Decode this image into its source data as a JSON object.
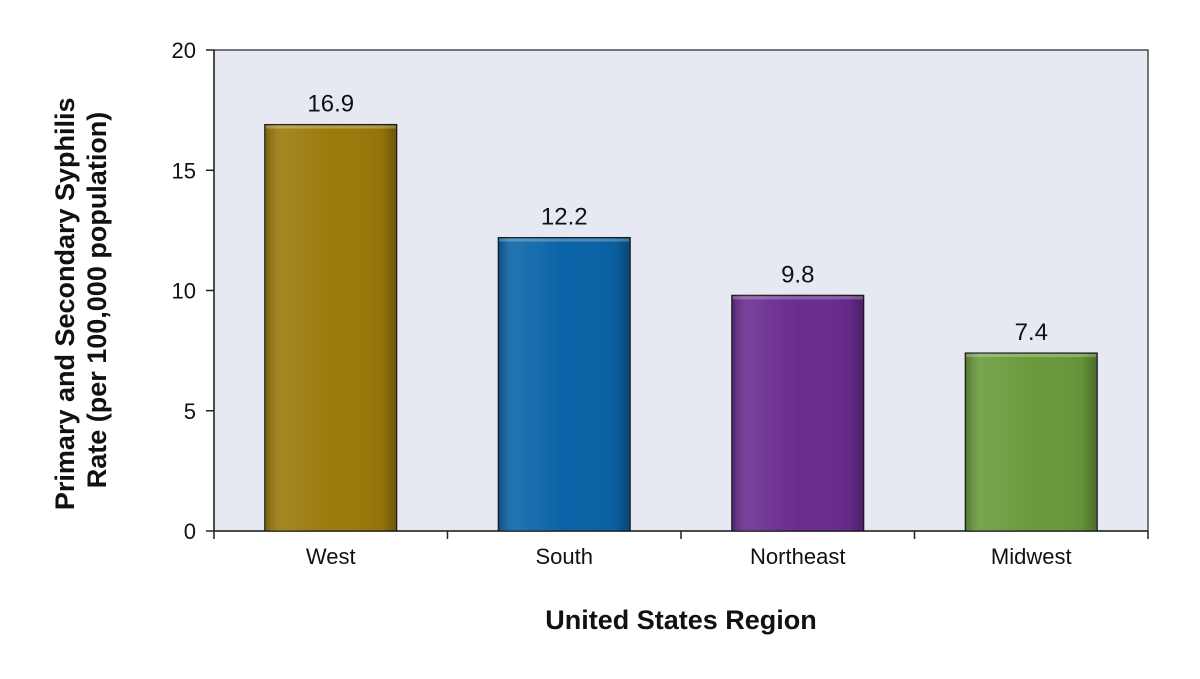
{
  "chart_data": {
    "type": "bar",
    "title": "",
    "xlabel": "United States Region",
    "ylabel_lines": [
      "Primary and Secondary Syphilis",
      "Rate (per 100,000 population)"
    ],
    "categories": [
      "West",
      "South",
      "Northeast",
      "Midwest"
    ],
    "values": [
      16.9,
      12.2,
      9.8,
      7.4
    ],
    "value_labels": [
      "16.9",
      "12.2",
      "9.8",
      "7.4"
    ],
    "bar_colors": [
      "#9a7a0a",
      "#0a64a8",
      "#6a2c90",
      "#6a9a3c"
    ],
    "plot_background": "#e6e9f1",
    "ylim": [
      0,
      20
    ],
    "yticks": [
      0,
      5,
      10,
      15,
      20
    ],
    "grid": false,
    "legend": "none"
  }
}
